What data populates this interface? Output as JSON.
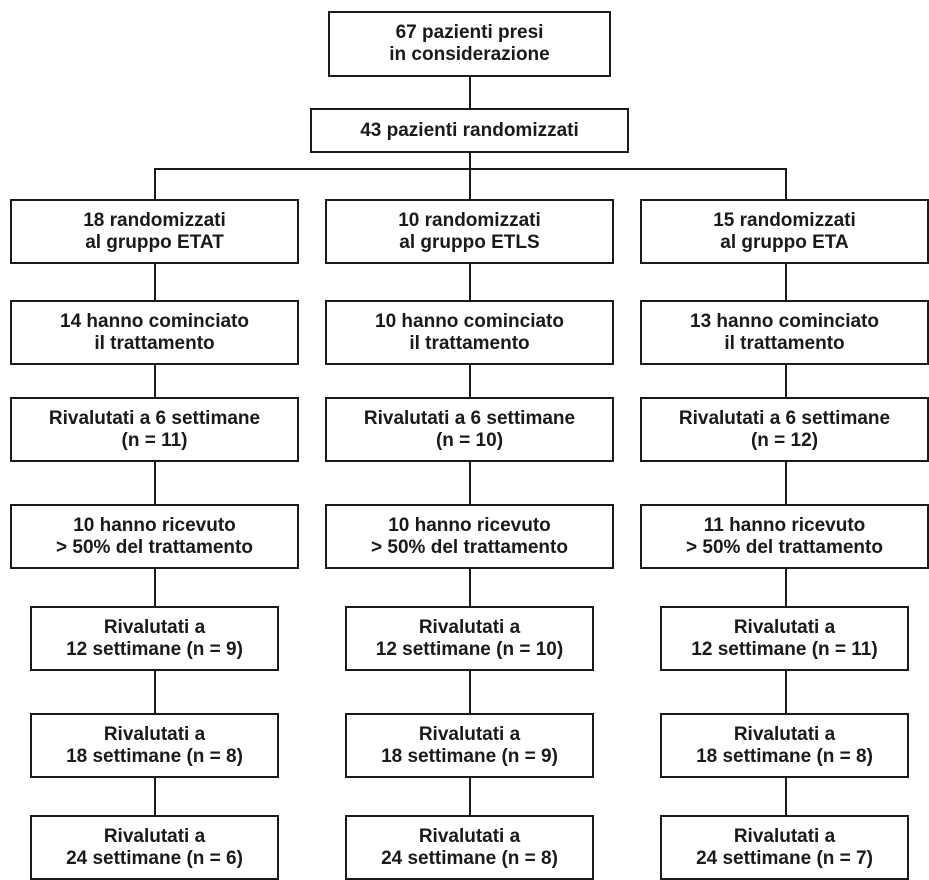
{
  "flowchart": {
    "top": {
      "considered": [
        "67 pazienti presi",
        "in considerazione"
      ],
      "randomized": [
        "43 pazienti randomizzati"
      ]
    },
    "columns": [
      {
        "group": [
          "18 randomizzati",
          "al gruppo ETAT"
        ],
        "started": [
          "14 hanno cominciato",
          "il trattamento"
        ],
        "week6": [
          "Rivalutati a 6 settimane",
          "(n = 11)"
        ],
        "received": [
          "10 hanno ricevuto",
          "> 50% del trattamento"
        ],
        "week12": [
          "Rivalutati a",
          "12 settimane (n = 9)"
        ],
        "week18": [
          "Rivalutati a",
          "18 settimane (n = 8)"
        ],
        "week24": [
          "Rivalutati a",
          "24 settimane (n = 6)"
        ]
      },
      {
        "group": [
          "10 randomizzati",
          "al gruppo ETLS"
        ],
        "started": [
          "10 hanno cominciato",
          "il trattamento"
        ],
        "week6": [
          "Rivalutati a 6 settimane",
          "(n = 10)"
        ],
        "received": [
          "10 hanno ricevuto",
          "> 50% del trattamento"
        ],
        "week12": [
          "Rivalutati a",
          "12 settimane (n = 10)"
        ],
        "week18": [
          "Rivalutati a",
          "18 settimane (n = 9)"
        ],
        "week24": [
          "Rivalutati a",
          "24 settimane (n = 8)"
        ]
      },
      {
        "group": [
          "15 randomizzati",
          "al gruppo ETA"
        ],
        "started": [
          "13 hanno cominciato",
          "il trattamento"
        ],
        "week6": [
          "Rivalutati a 6 settimane",
          "(n = 12)"
        ],
        "received": [
          "11 hanno ricevuto",
          "> 50% del trattamento"
        ],
        "week12": [
          "Rivalutati a",
          "12 settimane (n = 11)"
        ],
        "week18": [
          "Rivalutati a",
          "18 settimane (n = 8)"
        ],
        "week24": [
          "Rivalutati a",
          "24 settimane (n = 7)"
        ]
      }
    ]
  }
}
